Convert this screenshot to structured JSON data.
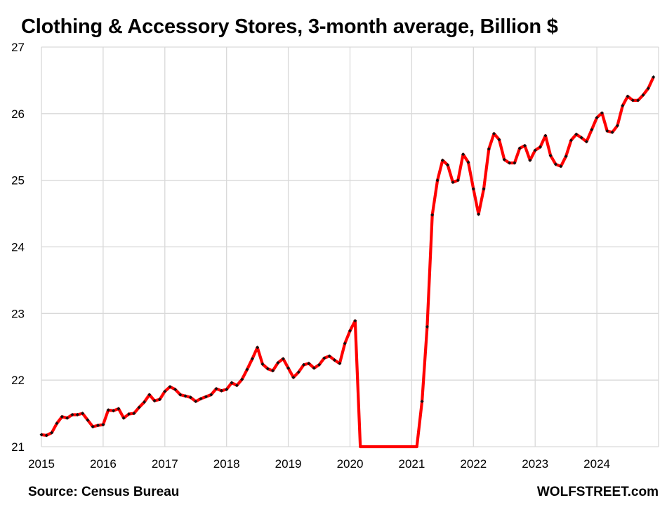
{
  "title": "Clothing & Accessory Stores, 3-month average, Billion $",
  "source": "Source: Census Bureau",
  "brand": "WOLFSTREET.com",
  "colors": {
    "line": "#ff0000",
    "marker": "#111111",
    "grid": "#d9d9d9"
  },
  "chart_data": {
    "type": "line",
    "title": "Clothing & Accessory Stores, 3-month average, Billion $",
    "xlabel": "",
    "ylabel": "",
    "ylim": [
      21,
      27
    ],
    "yticks": [
      21,
      22,
      23,
      24,
      25,
      26,
      27
    ],
    "xlim": [
      2015,
      2025
    ],
    "xticks": [
      2015,
      2016,
      2017,
      2018,
      2019,
      2020,
      2021,
      2022,
      2023,
      2024
    ],
    "grid": true,
    "legend": "none",
    "series": [
      {
        "x": [
          2015.0,
          2015.083,
          2015.167,
          2015.25,
          2015.333,
          2015.417,
          2015.5,
          2015.583,
          2015.667,
          2015.75,
          2015.833,
          2015.917,
          2016.0,
          2016.083,
          2016.167,
          2016.25,
          2016.333,
          2016.417,
          2016.5,
          2016.583,
          2016.667,
          2016.75,
          2016.833,
          2016.917,
          2017.0,
          2017.083,
          2017.167,
          2017.25,
          2017.333,
          2017.417,
          2017.5,
          2017.583,
          2017.667,
          2017.75,
          2017.833,
          2017.917,
          2018.0,
          2018.083,
          2018.167,
          2018.25,
          2018.333,
          2018.417,
          2018.5,
          2018.583,
          2018.667,
          2018.75,
          2018.833,
          2018.917,
          2019.0,
          2019.083,
          2019.167,
          2019.25,
          2019.333,
          2019.417,
          2019.5,
          2019.583,
          2019.667,
          2019.75,
          2019.833,
          2019.917,
          2020.0,
          2020.083,
          2020.167,
          2021.083,
          2021.167,
          2021.25,
          2021.333,
          2021.417,
          2021.5,
          2021.583,
          2021.667,
          2021.75,
          2021.833,
          2021.917,
          2022.0,
          2022.083,
          2022.167,
          2022.25,
          2022.333,
          2022.417,
          2022.5,
          2022.583,
          2022.667,
          2022.75,
          2022.833,
          2022.917,
          2023.0,
          2023.083,
          2023.167,
          2023.25,
          2023.333,
          2023.417,
          2023.5,
          2023.583,
          2023.667,
          2023.75,
          2023.833,
          2023.917,
          2024.0,
          2024.083,
          2024.167,
          2024.25,
          2024.333,
          2024.417,
          2024.5,
          2024.583,
          2024.667,
          2024.75,
          2024.833,
          2024.917
        ],
        "values": [
          21.18,
          21.17,
          21.21,
          21.35,
          21.45,
          21.43,
          21.48,
          21.48,
          21.5,
          21.4,
          21.3,
          21.32,
          21.33,
          21.55,
          21.54,
          21.57,
          21.43,
          21.49,
          21.5,
          21.59,
          21.67,
          21.78,
          21.69,
          21.71,
          21.83,
          21.9,
          21.86,
          21.78,
          21.76,
          21.74,
          21.68,
          21.72,
          21.75,
          21.78,
          21.87,
          21.84,
          21.86,
          21.96,
          21.92,
          22.01,
          22.16,
          22.32,
          22.49,
          22.24,
          22.17,
          22.14,
          22.26,
          22.32,
          22.18,
          22.04,
          22.12,
          22.23,
          22.25,
          22.18,
          22.23,
          22.33,
          22.36,
          22.3,
          22.25,
          22.55,
          22.74,
          22.89,
          21.0,
          21.0,
          21.68,
          22.8,
          24.48,
          25.0,
          25.3,
          25.23,
          24.97,
          25.0,
          25.39,
          25.27,
          24.87,
          24.49,
          24.87,
          25.47,
          25.7,
          25.61,
          25.31,
          25.26,
          25.26,
          25.48,
          25.52,
          25.3,
          25.45,
          25.5,
          25.67,
          25.37,
          25.24,
          25.21,
          25.36,
          25.6,
          25.69,
          25.64,
          25.58,
          25.76,
          25.94,
          26.01,
          25.74,
          25.72,
          25.82,
          26.12,
          26.26,
          26.2,
          26.2,
          26.28,
          26.38,
          26.55
        ]
      }
    ]
  }
}
